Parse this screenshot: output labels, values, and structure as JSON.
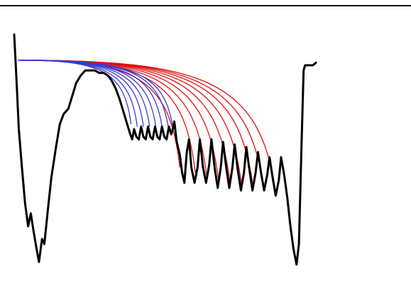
{
  "chart_data": {
    "type": "line",
    "title": "",
    "xlabel": "",
    "ylabel": "",
    "grid": false,
    "legend": "none",
    "frame": "top border only",
    "colors": {
      "trace": "#000000",
      "fit_blue": "#3a3ad0",
      "fit_red": "#e01010",
      "top_border": "#000000"
    },
    "series": [
      {
        "role": "measured-trace",
        "color": "#000000",
        "points": [
          [
            0.0,
            0.92
          ],
          [
            0.006,
            0.74
          ],
          [
            0.012,
            0.55
          ],
          [
            0.02,
            0.4
          ],
          [
            0.028,
            0.26
          ],
          [
            0.036,
            0.17
          ],
          [
            0.043,
            0.22
          ],
          [
            0.05,
            0.15
          ],
          [
            0.058,
            0.08
          ],
          [
            0.064,
            0.03
          ],
          [
            0.072,
            0.12
          ],
          [
            0.078,
            0.1
          ],
          [
            0.086,
            0.22
          ],
          [
            0.096,
            0.36
          ],
          [
            0.108,
            0.48
          ],
          [
            0.118,
            0.57
          ],
          [
            0.128,
            0.61
          ],
          [
            0.14,
            0.63
          ],
          [
            0.15,
            0.68
          ],
          [
            0.16,
            0.73
          ],
          [
            0.172,
            0.76
          ],
          [
            0.184,
            0.78
          ],
          [
            0.196,
            0.78
          ],
          [
            0.208,
            0.78
          ],
          [
            0.22,
            0.77
          ],
          [
            0.232,
            0.77
          ],
          [
            0.242,
            0.76
          ],
          [
            0.252,
            0.74
          ],
          [
            0.262,
            0.71
          ],
          [
            0.272,
            0.67
          ],
          [
            0.282,
            0.62
          ],
          [
            0.292,
            0.57
          ],
          [
            0.3,
            0.53
          ],
          [
            0.305,
            0.51
          ],
          [
            0.31,
            0.55
          ],
          [
            0.316,
            0.52
          ],
          [
            0.322,
            0.51
          ],
          [
            0.328,
            0.56
          ],
          [
            0.334,
            0.52
          ],
          [
            0.34,
            0.51
          ],
          [
            0.346,
            0.56
          ],
          [
            0.352,
            0.52
          ],
          [
            0.358,
            0.51
          ],
          [
            0.364,
            0.56
          ],
          [
            0.37,
            0.52
          ],
          [
            0.376,
            0.51
          ],
          [
            0.382,
            0.56
          ],
          [
            0.388,
            0.52
          ],
          [
            0.394,
            0.51
          ],
          [
            0.4,
            0.56
          ],
          [
            0.406,
            0.53
          ],
          [
            0.41,
            0.55
          ],
          [
            0.414,
            0.58
          ],
          [
            0.42,
            0.5
          ],
          [
            0.428,
            0.45
          ],
          [
            0.434,
            0.38
          ],
          [
            0.44,
            0.34
          ],
          [
            0.446,
            0.46
          ],
          [
            0.452,
            0.51
          ],
          [
            0.458,
            0.4
          ],
          [
            0.466,
            0.34
          ],
          [
            0.474,
            0.4
          ],
          [
            0.48,
            0.51
          ],
          [
            0.488,
            0.4
          ],
          [
            0.496,
            0.34
          ],
          [
            0.504,
            0.41
          ],
          [
            0.51,
            0.51
          ],
          [
            0.518,
            0.4
          ],
          [
            0.526,
            0.32
          ],
          [
            0.534,
            0.4
          ],
          [
            0.54,
            0.5
          ],
          [
            0.548,
            0.4
          ],
          [
            0.556,
            0.32
          ],
          [
            0.564,
            0.4
          ],
          [
            0.57,
            0.49
          ],
          [
            0.578,
            0.39
          ],
          [
            0.586,
            0.31
          ],
          [
            0.594,
            0.38
          ],
          [
            0.6,
            0.48
          ],
          [
            0.608,
            0.39
          ],
          [
            0.616,
            0.31
          ],
          [
            0.624,
            0.38
          ],
          [
            0.63,
            0.46
          ],
          [
            0.638,
            0.38
          ],
          [
            0.646,
            0.31
          ],
          [
            0.654,
            0.37
          ],
          [
            0.66,
            0.44
          ],
          [
            0.668,
            0.36
          ],
          [
            0.676,
            0.29
          ],
          [
            0.684,
            0.35
          ],
          [
            0.69,
            0.44
          ],
          [
            0.698,
            0.37
          ],
          [
            0.706,
            0.28
          ],
          [
            0.714,
            0.17
          ],
          [
            0.722,
            0.08
          ],
          [
            0.73,
            0.02
          ],
          [
            0.736,
            0.1
          ],
          [
            0.742,
            0.45
          ],
          [
            0.748,
            0.78
          ],
          [
            0.752,
            0.8
          ],
          [
            0.76,
            0.8
          ],
          [
            0.772,
            0.8
          ],
          [
            0.78,
            0.81
          ]
        ]
      }
    ],
    "fit_curves": {
      "start_level": 0.82,
      "blue_ends": [
        [
          0.302,
          0.57
        ],
        [
          0.318,
          0.56
        ],
        [
          0.334,
          0.56
        ],
        [
          0.35,
          0.56
        ],
        [
          0.366,
          0.56
        ],
        [
          0.382,
          0.56
        ],
        [
          0.398,
          0.56
        ],
        [
          0.41,
          0.56
        ]
      ],
      "red_ends": [
        [
          0.428,
          0.4
        ],
        [
          0.468,
          0.38
        ],
        [
          0.498,
          0.36
        ],
        [
          0.528,
          0.35
        ],
        [
          0.558,
          0.34
        ],
        [
          0.588,
          0.33
        ],
        [
          0.618,
          0.32
        ],
        [
          0.646,
          0.31
        ],
        [
          0.676,
          0.3
        ]
      ]
    }
  }
}
